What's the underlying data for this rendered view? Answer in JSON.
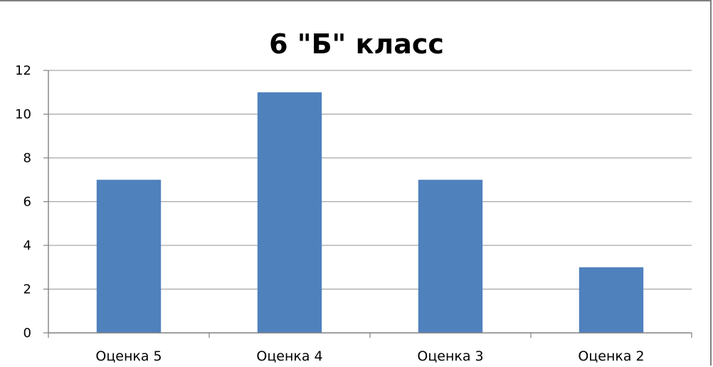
{
  "chart_data": {
    "type": "bar",
    "title": "6 \"Б\" класс",
    "categories": [
      "Оценка 5",
      "Оценка 4",
      "Оценка 3",
      "Оценка 2"
    ],
    "values": [
      7,
      11,
      7,
      3
    ],
    "xlabel": "",
    "ylabel": "",
    "ylim": [
      0,
      12
    ],
    "yticks": [
      0,
      2,
      4,
      6,
      8,
      10,
      12
    ],
    "grid": true,
    "legend": "none",
    "colors": {
      "bar": "#4f81bd",
      "grid": "#a6a6a6",
      "axis": "#808080"
    }
  }
}
